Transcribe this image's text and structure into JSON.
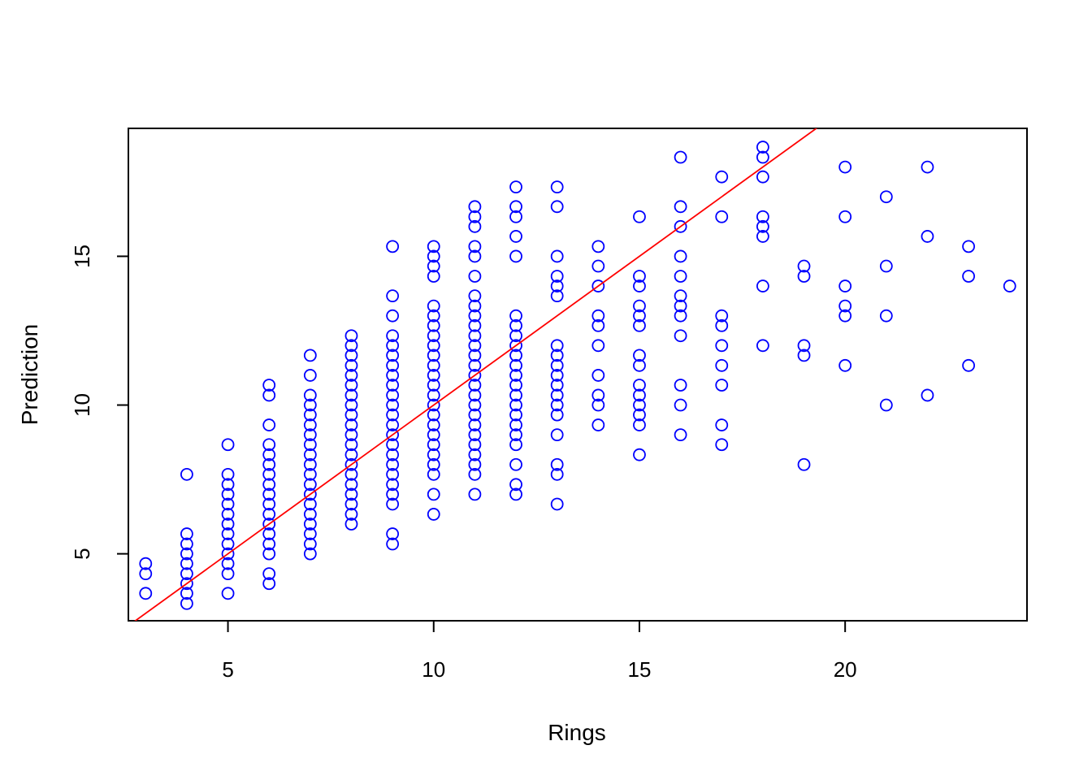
{
  "chart_data": {
    "type": "scatter",
    "title": "",
    "xlabel": "Rings",
    "ylabel": "Prediction",
    "xlim": [
      2.58,
      24.42
    ],
    "ylim": [
      2.75,
      19.3
    ],
    "xticks": [
      5,
      10,
      15,
      20
    ],
    "yticks": [
      5,
      10,
      15
    ],
    "grid": false,
    "legend": "none",
    "point_color": "#0000ff",
    "reference_line": {
      "intercept": 0,
      "slope": 1,
      "color": "#ff0000"
    },
    "series": [
      {
        "points": [
          [
            3,
            3.67
          ],
          [
            3,
            4.33
          ],
          [
            3,
            4.67
          ],
          [
            4,
            3.33
          ],
          [
            4,
            3.67
          ],
          [
            4,
            4.0
          ],
          [
            4,
            4.33
          ],
          [
            4,
            4.67
          ],
          [
            4,
            5.0
          ],
          [
            4,
            5.33
          ],
          [
            4,
            5.67
          ],
          [
            4,
            7.67
          ],
          [
            5,
            3.67
          ],
          [
            5,
            4.33
          ],
          [
            5,
            4.67
          ],
          [
            5,
            5.0
          ],
          [
            5,
            5.33
          ],
          [
            5,
            5.67
          ],
          [
            5,
            6.0
          ],
          [
            5,
            6.33
          ],
          [
            5,
            6.67
          ],
          [
            5,
            7.0
          ],
          [
            5,
            7.33
          ],
          [
            5,
            7.67
          ],
          [
            5,
            8.67
          ],
          [
            6,
            4.0
          ],
          [
            6,
            4.33
          ],
          [
            6,
            5.0
          ],
          [
            6,
            5.33
          ],
          [
            6,
            5.67
          ],
          [
            6,
            6.0
          ],
          [
            6,
            6.33
          ],
          [
            6,
            6.67
          ],
          [
            6,
            7.0
          ],
          [
            6,
            7.33
          ],
          [
            6,
            7.67
          ],
          [
            6,
            8.0
          ],
          [
            6,
            8.33
          ],
          [
            6,
            8.67
          ],
          [
            6,
            9.33
          ],
          [
            6,
            10.33
          ],
          [
            6,
            10.67
          ],
          [
            7,
            5.0
          ],
          [
            7,
            5.33
          ],
          [
            7,
            5.67
          ],
          [
            7,
            6.0
          ],
          [
            7,
            6.33
          ],
          [
            7,
            6.67
          ],
          [
            7,
            7.0
          ],
          [
            7,
            7.33
          ],
          [
            7,
            7.67
          ],
          [
            7,
            8.0
          ],
          [
            7,
            8.33
          ],
          [
            7,
            8.67
          ],
          [
            7,
            9.0
          ],
          [
            7,
            9.33
          ],
          [
            7,
            9.67
          ],
          [
            7,
            10.0
          ],
          [
            7,
            10.33
          ],
          [
            7,
            11.0
          ],
          [
            7,
            11.67
          ],
          [
            8,
            6.0
          ],
          [
            8,
            6.33
          ],
          [
            8,
            6.67
          ],
          [
            8,
            7.0
          ],
          [
            8,
            7.33
          ],
          [
            8,
            7.67
          ],
          [
            8,
            8.0
          ],
          [
            8,
            8.33
          ],
          [
            8,
            8.67
          ],
          [
            8,
            9.0
          ],
          [
            8,
            9.33
          ],
          [
            8,
            9.67
          ],
          [
            8,
            10.0
          ],
          [
            8,
            10.33
          ],
          [
            8,
            10.67
          ],
          [
            8,
            11.0
          ],
          [
            8,
            11.33
          ],
          [
            8,
            11.67
          ],
          [
            8,
            12.0
          ],
          [
            8,
            12.33
          ],
          [
            9,
            5.33
          ],
          [
            9,
            5.67
          ],
          [
            9,
            6.67
          ],
          [
            9,
            7.0
          ],
          [
            9,
            7.33
          ],
          [
            9,
            7.67
          ],
          [
            9,
            8.0
          ],
          [
            9,
            8.33
          ],
          [
            9,
            8.67
          ],
          [
            9,
            9.0
          ],
          [
            9,
            9.33
          ],
          [
            9,
            9.67
          ],
          [
            9,
            10.0
          ],
          [
            9,
            10.33
          ],
          [
            9,
            10.67
          ],
          [
            9,
            11.0
          ],
          [
            9,
            11.33
          ],
          [
            9,
            11.67
          ],
          [
            9,
            12.0
          ],
          [
            9,
            12.33
          ],
          [
            9,
            13.0
          ],
          [
            9,
            13.67
          ],
          [
            9,
            15.33
          ],
          [
            10,
            6.33
          ],
          [
            10,
            7.0
          ],
          [
            10,
            7.67
          ],
          [
            10,
            8.0
          ],
          [
            10,
            8.33
          ],
          [
            10,
            8.67
          ],
          [
            10,
            9.0
          ],
          [
            10,
            9.33
          ],
          [
            10,
            9.67
          ],
          [
            10,
            10.0
          ],
          [
            10,
            10.33
          ],
          [
            10,
            10.67
          ],
          [
            10,
            11.0
          ],
          [
            10,
            11.33
          ],
          [
            10,
            11.67
          ],
          [
            10,
            12.0
          ],
          [
            10,
            12.33
          ],
          [
            10,
            12.67
          ],
          [
            10,
            13.0
          ],
          [
            10,
            13.33
          ],
          [
            10,
            14.33
          ],
          [
            10,
            14.67
          ],
          [
            10,
            15.0
          ],
          [
            10,
            15.33
          ],
          [
            11,
            7.0
          ],
          [
            11,
            7.67
          ],
          [
            11,
            8.0
          ],
          [
            11,
            8.33
          ],
          [
            11,
            8.67
          ],
          [
            11,
            9.0
          ],
          [
            11,
            9.33
          ],
          [
            11,
            9.67
          ],
          [
            11,
            10.0
          ],
          [
            11,
            10.33
          ],
          [
            11,
            10.67
          ],
          [
            11,
            11.0
          ],
          [
            11,
            11.33
          ],
          [
            11,
            11.67
          ],
          [
            11,
            12.0
          ],
          [
            11,
            12.33
          ],
          [
            11,
            12.67
          ],
          [
            11,
            13.0
          ],
          [
            11,
            13.33
          ],
          [
            11,
            13.67
          ],
          [
            11,
            14.33
          ],
          [
            11,
            15.0
          ],
          [
            11,
            15.33
          ],
          [
            11,
            16.0
          ],
          [
            11,
            16.33
          ],
          [
            11,
            16.67
          ],
          [
            12,
            7.0
          ],
          [
            12,
            7.33
          ],
          [
            12,
            8.0
          ],
          [
            12,
            8.67
          ],
          [
            12,
            9.0
          ],
          [
            12,
            9.33
          ],
          [
            12,
            9.67
          ],
          [
            12,
            10.0
          ],
          [
            12,
            10.33
          ],
          [
            12,
            10.67
          ],
          [
            12,
            11.0
          ],
          [
            12,
            11.33
          ],
          [
            12,
            11.67
          ],
          [
            12,
            12.0
          ],
          [
            12,
            12.33
          ],
          [
            12,
            12.67
          ],
          [
            12,
            13.0
          ],
          [
            12,
            15.0
          ],
          [
            12,
            15.67
          ],
          [
            12,
            16.33
          ],
          [
            12,
            16.67
          ],
          [
            12,
            17.33
          ],
          [
            13,
            6.67
          ],
          [
            13,
            7.67
          ],
          [
            13,
            8.0
          ],
          [
            13,
            9.0
          ],
          [
            13,
            9.67
          ],
          [
            13,
            10.0
          ],
          [
            13,
            10.33
          ],
          [
            13,
            10.67
          ],
          [
            13,
            11.0
          ],
          [
            13,
            11.33
          ],
          [
            13,
            11.67
          ],
          [
            13,
            12.0
          ],
          [
            13,
            13.67
          ],
          [
            13,
            14.0
          ],
          [
            13,
            14.33
          ],
          [
            13,
            15.0
          ],
          [
            13,
            16.67
          ],
          [
            13,
            17.33
          ],
          [
            14,
            9.33
          ],
          [
            14,
            10.0
          ],
          [
            14,
            10.33
          ],
          [
            14,
            11.0
          ],
          [
            14,
            12.0
          ],
          [
            14,
            12.67
          ],
          [
            14,
            13.0
          ],
          [
            14,
            14.0
          ],
          [
            14,
            14.67
          ],
          [
            14,
            15.33
          ],
          [
            15,
            8.33
          ],
          [
            15,
            9.33
          ],
          [
            15,
            9.67
          ],
          [
            15,
            10.0
          ],
          [
            15,
            10.33
          ],
          [
            15,
            10.67
          ],
          [
            15,
            11.33
          ],
          [
            15,
            11.67
          ],
          [
            15,
            12.67
          ],
          [
            15,
            13.0
          ],
          [
            15,
            13.33
          ],
          [
            15,
            14.0
          ],
          [
            15,
            14.33
          ],
          [
            15,
            16.33
          ],
          [
            16,
            9.0
          ],
          [
            16,
            10.0
          ],
          [
            16,
            10.67
          ],
          [
            16,
            12.33
          ],
          [
            16,
            13.0
          ],
          [
            16,
            13.33
          ],
          [
            16,
            13.67
          ],
          [
            16,
            14.33
          ],
          [
            16,
            15.0
          ],
          [
            16,
            16.0
          ],
          [
            16,
            16.67
          ],
          [
            16,
            18.33
          ],
          [
            17,
            8.67
          ],
          [
            17,
            9.33
          ],
          [
            17,
            10.67
          ],
          [
            17,
            11.33
          ],
          [
            17,
            12.0
          ],
          [
            17,
            12.67
          ],
          [
            17,
            13.0
          ],
          [
            17,
            16.33
          ],
          [
            17,
            17.67
          ],
          [
            18,
            12.0
          ],
          [
            18,
            14.0
          ],
          [
            18,
            15.67
          ],
          [
            18,
            16.0
          ],
          [
            18,
            16.33
          ],
          [
            18,
            17.67
          ],
          [
            18,
            18.33
          ],
          [
            18,
            18.67
          ],
          [
            19,
            8.0
          ],
          [
            19,
            11.67
          ],
          [
            19,
            12.0
          ],
          [
            19,
            14.33
          ],
          [
            19,
            14.67
          ],
          [
            20,
            11.33
          ],
          [
            20,
            13.0
          ],
          [
            20,
            13.33
          ],
          [
            20,
            14.0
          ],
          [
            20,
            16.33
          ],
          [
            20,
            18.0
          ],
          [
            21,
            10.0
          ],
          [
            21,
            13.0
          ],
          [
            21,
            14.67
          ],
          [
            21,
            17.0
          ],
          [
            22,
            10.33
          ],
          [
            22,
            15.67
          ],
          [
            22,
            18.0
          ],
          [
            23,
            11.33
          ],
          [
            23,
            14.33
          ],
          [
            23,
            15.33
          ],
          [
            24,
            14.0
          ]
        ]
      }
    ]
  }
}
